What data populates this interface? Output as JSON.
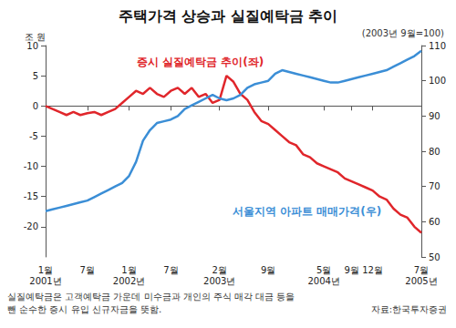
{
  "chart_data": {
    "type": "line",
    "title": "주택가격 상승과 실질예탁금 추이",
    "subtitle": "(2003년 9월=100)",
    "y_label": "조 원",
    "categories": [
      "1월\n2001년",
      null,
      null,
      null,
      null,
      null,
      "7월",
      null,
      null,
      null,
      null,
      null,
      "1월\n2002년",
      null,
      null,
      null,
      null,
      null,
      "7월",
      null,
      null,
      null,
      null,
      null,
      null,
      "2월\n2003년",
      null,
      null,
      null,
      null,
      null,
      null,
      "9월",
      null,
      null,
      null,
      null,
      null,
      null,
      null,
      "5월\n2004년",
      null,
      null,
      null,
      "9월",
      null,
      null,
      "12월",
      null,
      null,
      null,
      null,
      null,
      null,
      "7월\n2005년"
    ],
    "series": [
      {
        "name": "증시 실질예탁금 추이(좌)",
        "color": "#e0262b",
        "values": [
          0,
          -0.5,
          -1,
          -1.5,
          -1,
          -1.5,
          -1.2,
          -1,
          -1.5,
          -1,
          -0.5,
          0.5,
          1.5,
          2.5,
          2,
          3,
          2,
          1.5,
          2.5,
          3,
          2,
          3,
          1.5,
          2,
          0.5,
          1,
          5,
          4,
          2,
          1,
          -1,
          -2.5,
          -3,
          -4,
          -5,
          -6,
          -6.5,
          -8,
          -8.5,
          -9.5,
          -10,
          -10.5,
          -11,
          -12,
          -12.5,
          -13,
          -13.5,
          -14,
          -15,
          -15.5,
          -17,
          -18,
          -18.5,
          -20,
          -21
        ]
      },
      {
        "name": "서울지역 아파트 매매가격(우)",
        "color": "#3b8ed6",
        "axis": "y2",
        "values": [
          63,
          63.5,
          64,
          64.5,
          65,
          65.5,
          66,
          67,
          68,
          69,
          70,
          71,
          73,
          77,
          83,
          86,
          88,
          88.5,
          89,
          90,
          92,
          93,
          94,
          95,
          96,
          95,
          94.5,
          95,
          96,
          98,
          99,
          99.5,
          100,
          102,
          103,
          102.5,
          102,
          101.5,
          101,
          100.5,
          100,
          99.5,
          99.5,
          100,
          100.5,
          101,
          101.5,
          102,
          102.5,
          103,
          104,
          105,
          106,
          107,
          108.5
        ]
      }
    ],
    "ylim": [
      -25,
      10
    ],
    "yticks": [
      -20,
      -15,
      -10,
      -5,
      0,
      5,
      10
    ],
    "y2lim": [
      50,
      110
    ],
    "y2ticks": [
      50,
      60,
      70,
      80,
      90,
      100,
      110
    ],
    "grid": false,
    "note": [
      "실질예탁금은 고객예탁금 가운데 미수금과 개인의 주식 매각 대금 등을",
      "뺀 순수한 증시 유입 신규자금을 뜻함."
    ],
    "source": "자료:한국투자증권"
  }
}
